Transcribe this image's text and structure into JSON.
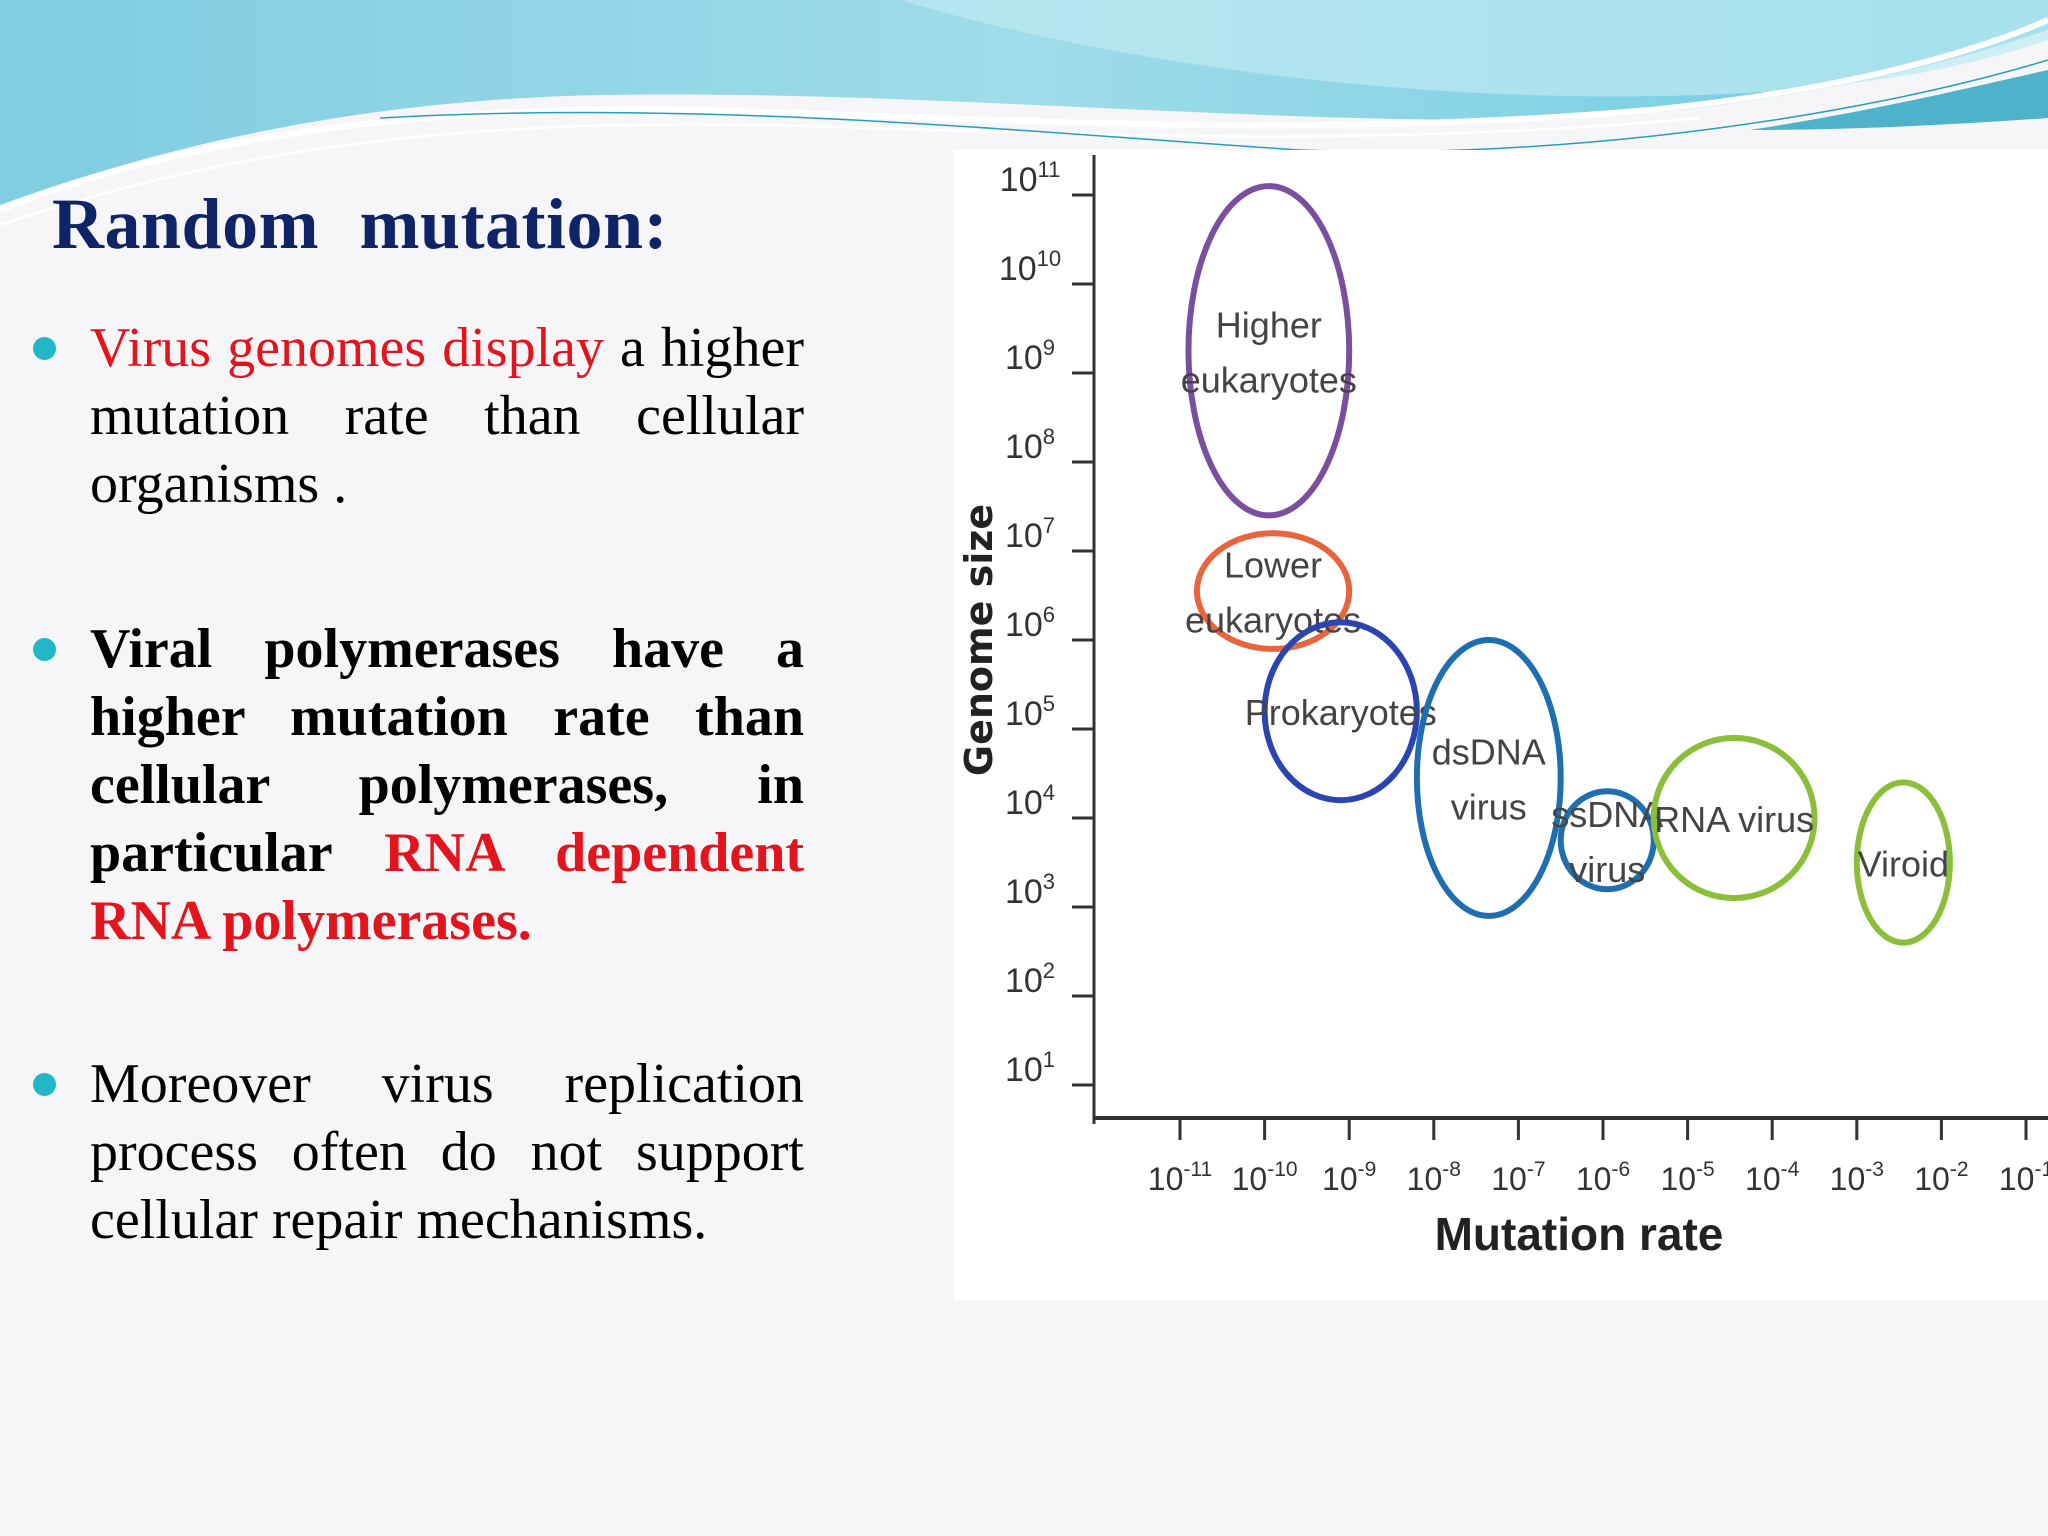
{
  "slide": {
    "title": "Random  mutation:",
    "bullets": [
      {
        "part1": "Virus genomes display",
        "part2": " a higher mutation rate than cellular organisms ."
      },
      {
        "part1": "Viral polymerases have a higher mutation rate than cellular polymerases, in particular ",
        "part2": "RNA dependent RNA polymerases."
      },
      {
        "text": "Moreover virus replication process often do not support cellular repair mechanisms."
      }
    ],
    "colors": {
      "title": "#0f2466",
      "highlight": "#e3141c",
      "bullet": "#22b7c8"
    }
  },
  "chart_data": {
    "type": "diagram",
    "xlabel": "Mutation rate",
    "ylabel": "Genome size",
    "x_ticks": [
      "-11",
      "-10",
      "-9",
      "-8",
      "-7",
      "-6",
      "-5",
      "-4",
      "-3",
      "-2",
      "-1"
    ],
    "y_ticks": [
      "11",
      "10",
      "9",
      "8",
      "7",
      "6",
      "5",
      "4",
      "3",
      "2",
      "1"
    ],
    "tick_base": "10",
    "xlog_range": [
      -11.5,
      -1
    ],
    "ylog_range": [
      1,
      11
    ],
    "groups": [
      {
        "lines": [
          "Higher",
          "eukaryotes"
        ],
        "color": "#7a4fa0",
        "x_range": [
          -10.9,
          -9.0
        ],
        "y_range": [
          7.4,
          11.1
        ]
      },
      {
        "lines": [
          "Lower",
          "eukaryotes"
        ],
        "color": "#e8643c",
        "x_range": [
          -10.8,
          -9.0
        ],
        "y_range": [
          5.9,
          7.2
        ]
      },
      {
        "lines": [
          "Prokaryotes"
        ],
        "color": "#2a44b0",
        "x_range": [
          -10.0,
          -8.2
        ],
        "y_range": [
          4.2,
          6.2
        ]
      },
      {
        "lines": [
          "dsDNA",
          "virus"
        ],
        "color": "#1f6fb0",
        "x_range": [
          -8.2,
          -6.5
        ],
        "y_range": [
          2.9,
          6.0
        ]
      },
      {
        "lines": [
          "ssDNA",
          "virus"
        ],
        "color": "#1f6fb0",
        "x_range": [
          -6.5,
          -5.4
        ],
        "y_range": [
          3.2,
          4.3
        ]
      },
      {
        "lines": [
          "RNA virus"
        ],
        "color": "#8abf3a",
        "x_range": [
          -5.4,
          -3.5
        ],
        "y_range": [
          3.1,
          4.9
        ]
      },
      {
        "lines": [
          "Viroid"
        ],
        "color": "#8abf3a",
        "x_range": [
          -3.0,
          -1.9
        ],
        "y_range": [
          2.6,
          4.4
        ]
      }
    ]
  }
}
